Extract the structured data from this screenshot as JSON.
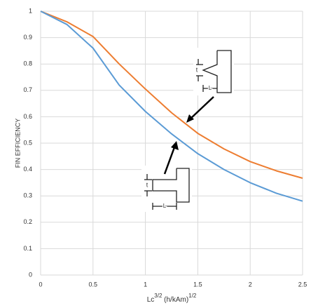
{
  "chart_data": {
    "type": "line",
    "x_label": [
      "Lc",
      "3/2",
      " (h/kAm)",
      "1/2"
    ],
    "y_label": "FIN EFFICIENCY",
    "x": [
      0,
      0.25,
      0.5,
      0.75,
      1,
      1.25,
      1.5,
      1.75,
      2,
      2.25,
      2.5
    ],
    "series": [
      {
        "color": "#ed7d31",
        "values": [
          1,
          0.96,
          0.904,
          0.8,
          0.705,
          0.615,
          0.537,
          0.478,
          0.43,
          0.395,
          0.367
        ]
      },
      {
        "color": "#5b9bd5",
        "values": [
          1,
          0.95,
          0.86,
          0.72,
          0.62,
          0.535,
          0.46,
          0.4,
          0.35,
          0.31,
          0.28
        ]
      }
    ],
    "xlim": [
      0,
      2.5
    ],
    "xticks": [
      0,
      0.5,
      1,
      1.5,
      2,
      2.5
    ],
    "ylim": [
      0,
      1
    ],
    "yticks": [
      0,
      0.1,
      0.2,
      0.3,
      0.4,
      0.5,
      0.6,
      0.7,
      0.8,
      0.9,
      1
    ],
    "grid": true,
    "annotations": [
      {
        "t": "t",
        "L": "L"
      },
      {
        "t": "t",
        "L": "L"
      }
    ]
  }
}
